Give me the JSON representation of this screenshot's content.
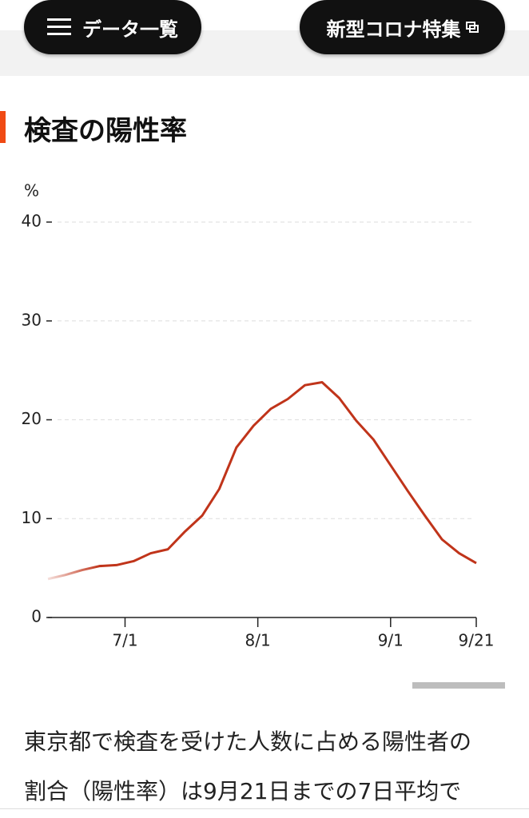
{
  "header": {
    "menu_button": "データ一覧",
    "feature_button": "新型コロナ特集"
  },
  "section_title": "検査の陽性率",
  "chart_data": {
    "type": "line",
    "y_unit": "%",
    "x": [
      "6/13",
      "6/17",
      "6/21",
      "6/25",
      "6/29",
      "7/3",
      "7/7",
      "7/11",
      "7/15",
      "7/19",
      "7/23",
      "7/27",
      "7/31",
      "8/4",
      "8/8",
      "8/12",
      "8/16",
      "8/20",
      "8/24",
      "8/28",
      "9/1",
      "9/5",
      "9/9",
      "9/13",
      "9/17",
      "9/21"
    ],
    "series": [
      {
        "color": "#c0341a",
        "values": [
          3.9,
          4.3,
          4.8,
          5.2,
          5.3,
          5.7,
          6.5,
          6.9,
          8.7,
          10.3,
          13.0,
          17.2,
          19.4,
          21.1,
          22.1,
          23.5,
          23.8,
          22.2,
          19.9,
          18.0,
          15.4,
          12.8,
          10.3,
          7.9,
          6.5,
          5.5
        ]
      }
    ],
    "xlim": [
      "6/13",
      "9/21"
    ],
    "xticks": [
      "7/1",
      "8/1",
      "9/1",
      "9/21"
    ],
    "ylim": [
      0,
      40
    ],
    "yticks": [
      0,
      10,
      20,
      30,
      40
    ],
    "grid": true
  },
  "body": {
    "lines": [
      "東京都で検査を受けた人数に占める陽性者の",
      "割合（陽性率）は9月21日までの7日平均で"
    ]
  }
}
